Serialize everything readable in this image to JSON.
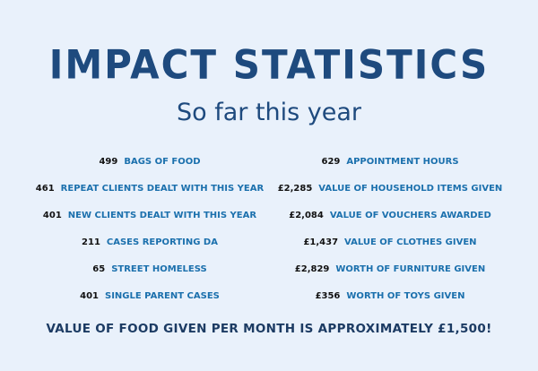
{
  "header": {
    "title": "IMPACT STATISTICS",
    "subtitle": "So far this year"
  },
  "left": [
    {
      "number": "499",
      "label": "BAGS OF FOOD"
    },
    {
      "number": "461",
      "label": "REPEAT CLIENTS DEALT WITH THIS YEAR"
    },
    {
      "number": "401",
      "label": "NEW CLIENTS DEALT WITH THIS YEAR"
    },
    {
      "number": "211",
      "label": "CASES REPORTING DA"
    },
    {
      "number": "65",
      "label": "STREET HOMELESS"
    },
    {
      "number": "401",
      "label": "SINGLE PARENT CASES"
    }
  ],
  "right": [
    {
      "number": "629",
      "label": "APPOINTMENT HOURS"
    },
    {
      "number": "£2,285",
      "label": "VALUE OF HOUSEHOLD ITEMS GIVEN"
    },
    {
      "number": "£2,084",
      "label": "VALUE OF VOUCHERS AWARDED"
    },
    {
      "number": "£1,437",
      "label": "VALUE OF CLOTHES GIVEN"
    },
    {
      "number": "£2,829",
      "label": "WORTH OF FURNITURE GIVEN"
    },
    {
      "number": "£356",
      "label": "WORTH OF TOYS GIVEN"
    }
  ],
  "footer": "VALUE OF FOOD GIVEN PER MONTH IS APPROXIMATELY £1,500!"
}
